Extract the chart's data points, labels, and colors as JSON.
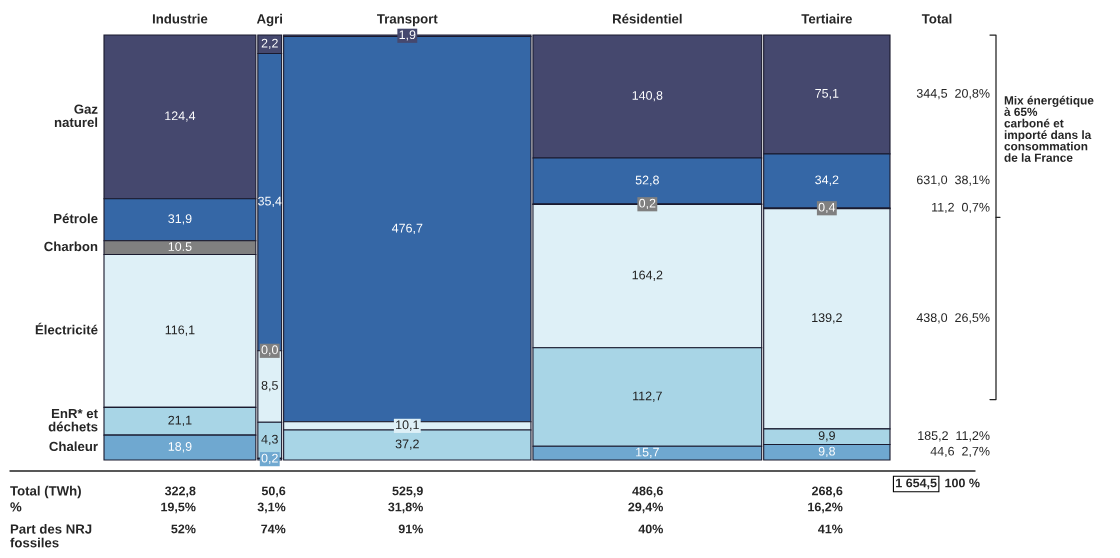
{
  "chart_data": {
    "type": "other",
    "categories": [
      "Industrie",
      "Agri",
      "Transport",
      "Résidentiel",
      "Tertiaire"
    ],
    "series": [
      {
        "name": "Gaz\nnaturel",
        "color": "#45486e",
        "values": [
          124.4,
          2.2,
          1.9,
          140.8,
          75.1
        ],
        "value_labels": [
          "124,4",
          "2,2",
          "1,9",
          "140,8",
          "75,1"
        ]
      },
      {
        "name": "Pétrole",
        "color": "#3567a6",
        "values": [
          31.9,
          35.4,
          476.7,
          52.8,
          34.2
        ],
        "value_labels": [
          "31,9",
          "35,4",
          "476,7",
          "52,8",
          "34,2"
        ]
      },
      {
        "name": "Charbon",
        "color": "#808080",
        "values": [
          10.5,
          0.0,
          null,
          0.2,
          0.4
        ],
        "value_labels": [
          "10.5",
          "0,0",
          null,
          "0,2",
          "0,4"
        ]
      },
      {
        "name": "Électricité",
        "color": "#def0f7",
        "values": [
          116.1,
          8.5,
          10.1,
          164.2,
          139.2
        ],
        "value_labels": [
          "116,1",
          "8,5",
          "10,1",
          "164,2",
          "139,2"
        ]
      },
      {
        "name": "EnR* et\ndéchets",
        "color": "#a8d5e6",
        "values": [
          21.1,
          4.3,
          37.2,
          112.7,
          9.9
        ],
        "value_labels": [
          "21,1",
          "4,3",
          "37,2",
          "112,7",
          "9,9"
        ]
      },
      {
        "name": "Chaleur",
        "color": "#6fa8d0",
        "values": [
          18.9,
          0.2,
          null,
          15.7,
          9.8
        ],
        "value_labels": [
          "18,9",
          "0,2",
          null,
          "15,7",
          "9,8"
        ]
      }
    ],
    "totals": [
      "322,8",
      "50,6",
      "525,9",
      "486,6",
      "268,6"
    ],
    "annotations": [
      "Total",
      "344,5  20,8%",
      "631,0  38,1%",
      "11,2  0,7%",
      "438,0  26,5%",
      "185,2  11,2%",
      "44,6  2,7%",
      "Mix énergétique\nà 65%\ncarboné et\nimporté dans la\nconsommation\nde la France",
      "Total (TWh)",
      "%",
      "Part des NRJ\nfossiles",
      "19,5%",
      "3,1%",
      "31,8%",
      "29,4%",
      "16,2%",
      "52%",
      "74%",
      "91%",
      "40%",
      "41%",
      "1 654,5",
      "100 %"
    ]
  }
}
